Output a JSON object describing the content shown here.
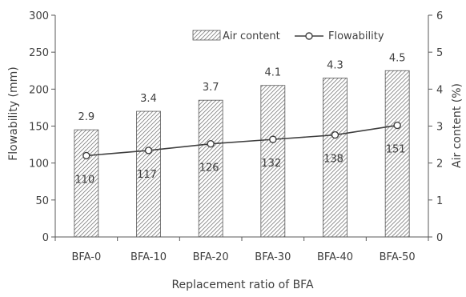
{
  "chart_data": {
    "type": "bar",
    "categories": [
      "BFA-0",
      "BFA-10",
      "BFA-20",
      "BFA-30",
      "BFA-40",
      "BFA-50"
    ],
    "xlabel": "Replacement  ratio  of  BFA",
    "ylabel_left": "Flowability (mm)",
    "ylabel_right": "Air content (%)",
    "ylim_left": [
      0,
      300
    ],
    "ylim_right": [
      0,
      6
    ],
    "yticks_left": [
      "0",
      "50",
      "100",
      "150",
      "200",
      "250",
      "300"
    ],
    "yticks_right": [
      "0",
      "1",
      "2",
      "3",
      "4",
      "5",
      "6"
    ],
    "grid": false,
    "legend_position": "top-right",
    "series": [
      {
        "name": "Air content",
        "type": "bar",
        "axis": "right",
        "values": [
          2.9,
          3.4,
          3.7,
          4.1,
          4.3,
          4.5
        ],
        "labels": [
          "2.9",
          "3.4",
          "3.7",
          "4.1",
          "4.3",
          "4.5"
        ]
      },
      {
        "name": "Flowability",
        "type": "line",
        "axis": "left",
        "values": [
          110,
          117,
          126,
          132,
          138,
          151
        ],
        "labels": [
          "110",
          "117",
          "126",
          "132",
          "138",
          "151"
        ]
      }
    ]
  },
  "colors": {
    "axis": "#595959",
    "text": "#404040",
    "bar_fill": "#ffffff",
    "bar_hatch": "#808080",
    "line": "#404040",
    "marker_fill": "#ffffff"
  }
}
